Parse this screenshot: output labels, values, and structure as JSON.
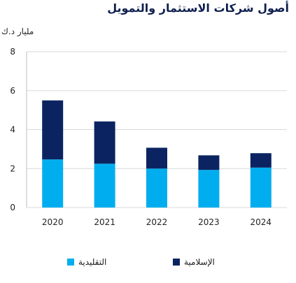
{
  "chart_data": {
    "type": "bar",
    "stacked": true,
    "title": "أصول شركات الاستثمار والتمويل",
    "unit": "مليار د.ك",
    "categories": [
      "2020",
      "2021",
      "2022",
      "2023",
      "2024"
    ],
    "ylim": [
      0,
      8
    ],
    "yticks": [
      0,
      2,
      4,
      6,
      8
    ],
    "grid": true,
    "legend_position": "bottom",
    "series": [
      {
        "name": "التقليدية",
        "color": "#00aeef",
        "values": [
          2.47,
          2.25,
          2.0,
          1.93,
          2.05
        ]
      },
      {
        "name": "الإسلامية",
        "color": "#0b2461",
        "values": [
          3.03,
          2.17,
          1.07,
          0.75,
          0.74
        ]
      }
    ]
  }
}
